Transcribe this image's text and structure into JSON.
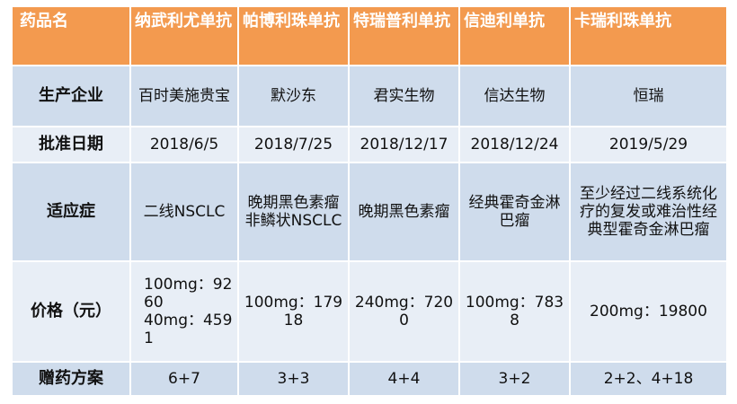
{
  "table": {
    "header": [
      "药品名",
      "纳武利尤单抗",
      "帕博利珠单抗",
      "特瑞普利单抗",
      "信迪利单抗",
      "卡瑞利珠单抗"
    ],
    "rows": [
      {
        "label": "生产企业",
        "cells": [
          "百时美施贵宝",
          "默沙东",
          "君实生物",
          "信达生物",
          "恒瑞"
        ]
      },
      {
        "label": "批准日期",
        "cells": [
          "2018/6/5",
          "2018/7/25",
          "2018/12/17",
          "2018/12/24",
          "2019/5/29"
        ]
      },
      {
        "label": "适应症",
        "cells": [
          "二线NSCLC",
          "晚期黑色素瘤\n非鳞状NSCLC",
          "晚期黑色素瘤",
          "经典霍奇金淋巴瘤",
          "至少经过二线系统化疗的复发或难治性经典型霍奇金淋巴瘤"
        ]
      },
      {
        "label": "价格（元）",
        "cells": [
          "100mg：9260\n40mg：4591",
          "100mg：17918",
          "240mg：7200",
          "100mg：7838",
          "200mg：19800"
        ]
      },
      {
        "label": "赠药方案",
        "cells": [
          "6+7",
          "3+3",
          "4+4",
          "3+2",
          "2+2、4+18"
        ]
      }
    ]
  },
  "colors": {
    "header_bg": "#f39a4f",
    "header_text": "#ffffff",
    "row_dark": "#cfdcec",
    "row_light": "#e8eef6"
  }
}
